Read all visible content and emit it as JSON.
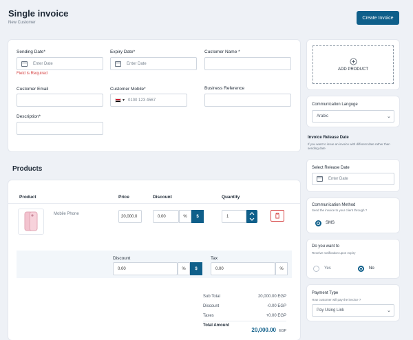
{
  "header": {
    "title": "Single invoice",
    "subtitle": "New Customer",
    "create_button": "Create Invoice"
  },
  "form": {
    "sending_date": {
      "label": "Sending Date*",
      "placeholder": "Enter Date",
      "error": "Field is Required"
    },
    "expiry_date": {
      "label": "Expiry Date*",
      "placeholder": "Enter Date"
    },
    "customer_name": {
      "label": "Customer Name *",
      "value": ""
    },
    "customer_email": {
      "label": "Customer Email",
      "value": ""
    },
    "customer_mobile": {
      "label": "Customer Mobile*",
      "country_code": "▾",
      "placeholder": "0100 123 4567"
    },
    "business_reference": {
      "label": "Business Reference",
      "value": ""
    },
    "description": {
      "label": "Description*",
      "value": ""
    }
  },
  "products": {
    "section_title": "Products",
    "columns": {
      "product": "Product",
      "price": "Price",
      "discount": "Discount",
      "quantity": "Quantity"
    },
    "rows": [
      {
        "name": "Mobile Phone",
        "price": "20,000.0",
        "discount": "0.00",
        "discount_pct": "%",
        "discount_fixed": "$",
        "quantity": "1"
      }
    ],
    "summary": {
      "discount_label": "Discount",
      "discount_value": "0.00",
      "pct": "%",
      "fixed": "$",
      "tax_label": "Tax",
      "tax_value": "0.00",
      "tax_pct": "%"
    },
    "totals": [
      {
        "label": "Sub Total",
        "value": "20,000.00 EGP"
      },
      {
        "label": "Discount",
        "value": "-0.00 EGP"
      },
      {
        "label": "Taxes",
        "value": "+0.00 EGP"
      }
    ],
    "total_amount": {
      "label": "Total Amount",
      "value": "20,000.00",
      "currency": "EGP"
    }
  },
  "sidebar": {
    "add_product": "ADD PRODUCT",
    "communication_language": {
      "label": "Communication Languge",
      "value": "Arabic"
    },
    "release": {
      "title": "Invoice Release Date",
      "hint": "If you want to issue an invoice with different date rather than sending date",
      "select_label": "Select Release Date",
      "placeholder": "Enter Date"
    },
    "communication_method": {
      "title": "Communication Method",
      "hint": "Send the invoice to your client through ?",
      "option": "SMS"
    },
    "notification": {
      "title": "Do you want to",
      "hint": "Receive notification upon expiry",
      "yes": "Yes",
      "no": "No"
    },
    "payment_type": {
      "title": "Payment Type",
      "hint": "How customer will pay the invoice ?",
      "value": "Pay Using Link"
    }
  },
  "colors": {
    "primary": "#0f5f8a",
    "error": "#d64545",
    "delete": "#d64545"
  }
}
